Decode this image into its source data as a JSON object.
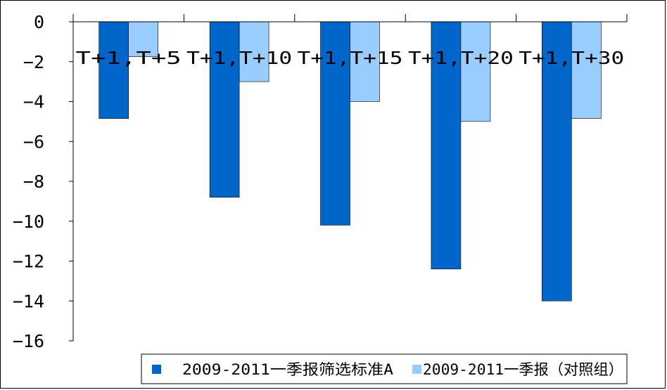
{
  "chart_data": {
    "type": "bar",
    "categories": [
      "T+1,T+5",
      "T+1,T+10",
      "T+1,T+15",
      "T+1,T+20",
      "T+1,T+30"
    ],
    "series": [
      {
        "name": "2009-2011一季报筛选标准A",
        "values": [
          -4.85,
          -8.8,
          -10.2,
          -12.4,
          -14.0
        ],
        "color": "#0066CC"
      },
      {
        "name": "2009-2011一季报（对照组）",
        "values": [
          -1.75,
          -3.0,
          -4.0,
          -5.0,
          -4.85
        ],
        "color": "#99CCFF"
      }
    ],
    "ylim": [
      -16,
      0
    ],
    "yticks": [
      0,
      -2,
      -4,
      -6,
      -8,
      -10,
      -12,
      -14,
      -16
    ],
    "title": "",
    "xlabel": "",
    "ylabel": "",
    "grid": false,
    "legend_position": "bottom-right"
  }
}
